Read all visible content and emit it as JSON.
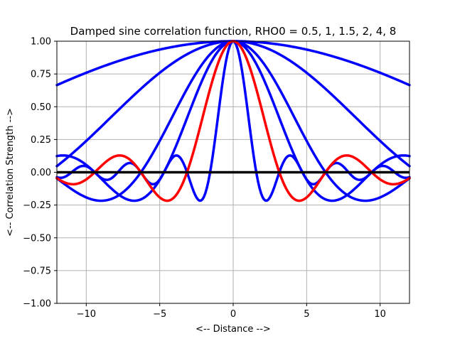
{
  "chart_data": {
    "type": "line",
    "title": "Damped sine correlation function, RHO0 = 0.5, 1, 1.5, 2, 4, 8",
    "xlabel": "<-- Distance -->",
    "ylabel": "<-- Correlation Strength -->",
    "xlim": [
      -12,
      12
    ],
    "ylim": [
      -1.0,
      1.0
    ],
    "grid": true,
    "function": "sin(x/rho0)/(x/rho0)",
    "x": {
      "start": -12,
      "end": 12,
      "samples": 241
    },
    "series": [
      {
        "rho0": 0.5,
        "color": "#0000ff"
      },
      {
        "rho0": 1.0,
        "color": "#ff0000"
      },
      {
        "rho0": 1.5,
        "color": "#0000ff"
      },
      {
        "rho0": 2.0,
        "color": "#0000ff"
      },
      {
        "rho0": 4.0,
        "color": "#0000ff"
      },
      {
        "rho0": 8.0,
        "color": "#0000ff"
      }
    ],
    "baseline": {
      "y": 0.0,
      "color": "#000000"
    },
    "xticks": [
      -10,
      -5,
      0,
      5,
      10
    ],
    "xtick_labels": [
      "−10",
      "−5",
      "0",
      "5",
      "10"
    ],
    "yticks": [
      -1.0,
      -0.75,
      -0.5,
      -0.25,
      0.0,
      0.25,
      0.5,
      0.75,
      1.0
    ],
    "ytick_labels": [
      "−1.00",
      "−0.75",
      "−0.50",
      "−0.25",
      "0.00",
      "0.25",
      "0.50",
      "0.75",
      "1.00"
    ]
  }
}
